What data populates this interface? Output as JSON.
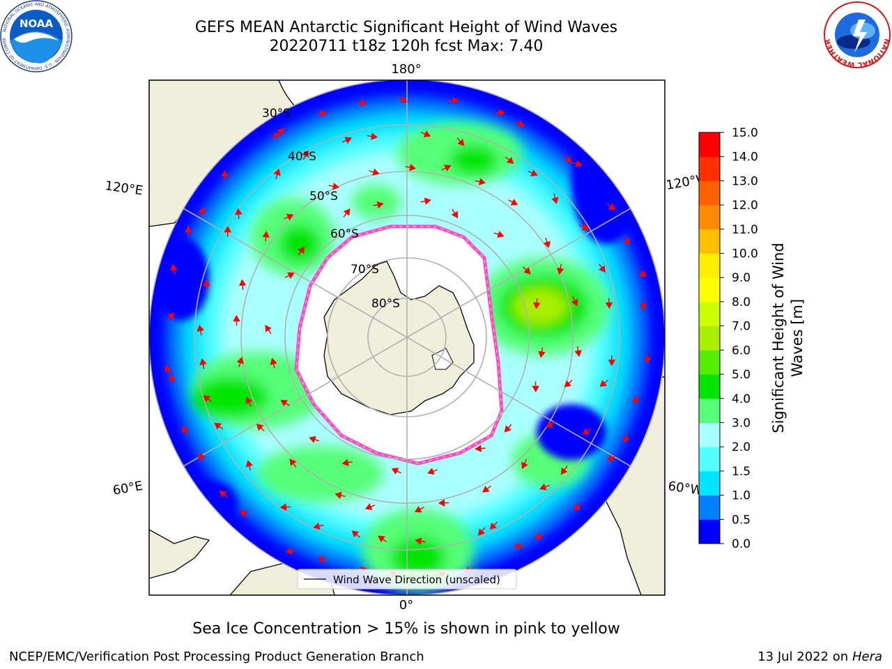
{
  "header": {
    "title_line1": "GEFS MEAN Antarctic Significant Height of Wind Waves",
    "title_line2": "20220711 t18z 120h fcst   Max: 7.40"
  },
  "logos": {
    "left": "NOAA",
    "left_ring_text": "NATIONAL OCEANIC AND ATMOSPHERIC ADMINISTRATION · U.S. DEPARTMENT OF COMMERCE",
    "right_ring_text": "NATIONAL WEATHER SERVICE"
  },
  "map": {
    "projection": "south-polar-stereographic",
    "longitude_labels": [
      "180°",
      "120°E",
      "120°W",
      "60°E",
      "60°W",
      "0°"
    ],
    "latitude_labels": [
      "30°S",
      "40°S",
      "50°S",
      "60°S",
      "70°S",
      "80°S"
    ],
    "legend_label": "Wind Wave Direction (unscaled)",
    "colors": {
      "land": "#efefdb",
      "ice_edge": "#ff44dd",
      "arrow": "#ff0000",
      "gridline": "#b0b0b0"
    }
  },
  "colorbar": {
    "label_line1": "Significant Height of Wind",
    "label_line2": "Waves [m]",
    "ticks": [
      "0.0",
      "0.5",
      "1.0",
      "1.5",
      "2.0",
      "3.0",
      "4.0",
      "5.0",
      "6.0",
      "7.0",
      "8.0",
      "9.0",
      "10.0",
      "11.0",
      "12.0",
      "13.0",
      "14.0",
      "15.0"
    ],
    "colors": [
      "#0000ff",
      "#0080ff",
      "#00e5ff",
      "#55ffff",
      "#aaffff",
      "#55ff77",
      "#00e600",
      "#55ee00",
      "#aaee00",
      "#ccff00",
      "#ffff00",
      "#ffee00",
      "#ffc000",
      "#ff8c00",
      "#ff6000",
      "#ff3000",
      "#ff0000"
    ]
  },
  "notes": {
    "sea_ice": "Sea Ice Concentration > 15% is shown in pink to yellow"
  },
  "footer": {
    "left": "NCEP/EMC/Verification Post Processing Product Generation Branch",
    "date": "13 Jul 2022 on ",
    "host": "Hera"
  }
}
